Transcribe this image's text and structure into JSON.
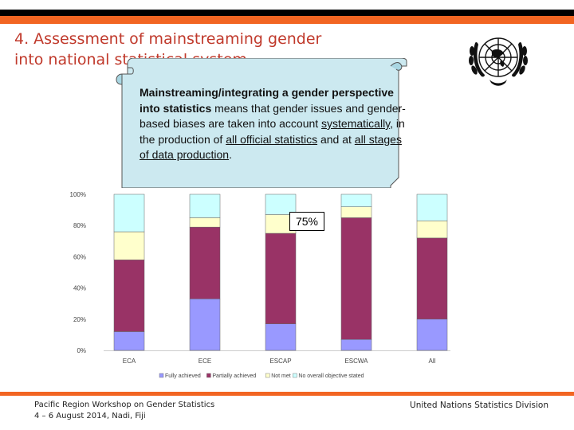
{
  "slide": {
    "title_lines": [
      "4. Assessment of mainstreaming gender",
      "into national statistical system"
    ]
  },
  "callout": {
    "bold_text": "Mainstreaming/integrating a gender perspective into statistics",
    "text_1": " means that gender issues and gender-based biases are taken into account ",
    "u1": "systematically",
    "text_2": ", in the production of ",
    "u2": "all official statistics",
    "text_3": " and at ",
    "u3": "all stages of data production",
    "text_4": "."
  },
  "annotation": {
    "label": "75%"
  },
  "chart_data": {
    "type": "bar",
    "stacked": true,
    "categories": [
      "ECA",
      "ECE",
      "ESCAP",
      "ESCWA",
      "All"
    ],
    "y_tick_labels": [
      "0%",
      "20%",
      "40%",
      "60%",
      "80%",
      "100%"
    ],
    "ylim": [
      0,
      100
    ],
    "series": [
      {
        "name": "Fully achieved",
        "color": "#9999ff",
        "values": [
          12,
          33,
          17,
          7,
          20
        ]
      },
      {
        "name": "Partially achieved",
        "color": "#993366",
        "values": [
          46,
          46,
          58,
          78,
          52
        ]
      },
      {
        "name": "Not met",
        "color": "#ffffcc",
        "values": [
          18,
          6,
          12,
          7,
          11
        ]
      },
      {
        "name": "No overall objective stated",
        "color": "#ccffff",
        "values": [
          24,
          15,
          13,
          8,
          17
        ]
      }
    ],
    "legend_position": "bottom"
  },
  "footer": {
    "left_line1": "Pacific Region Workshop on Gender Statistics",
    "left_line2": "4 – 6 August 2014, Nadi, Fiji",
    "right": "United Nations Statistics Division"
  },
  "colors": {
    "accent": "#f26522",
    "title": "#c0392b",
    "callout_bg": "#cce9f0"
  }
}
